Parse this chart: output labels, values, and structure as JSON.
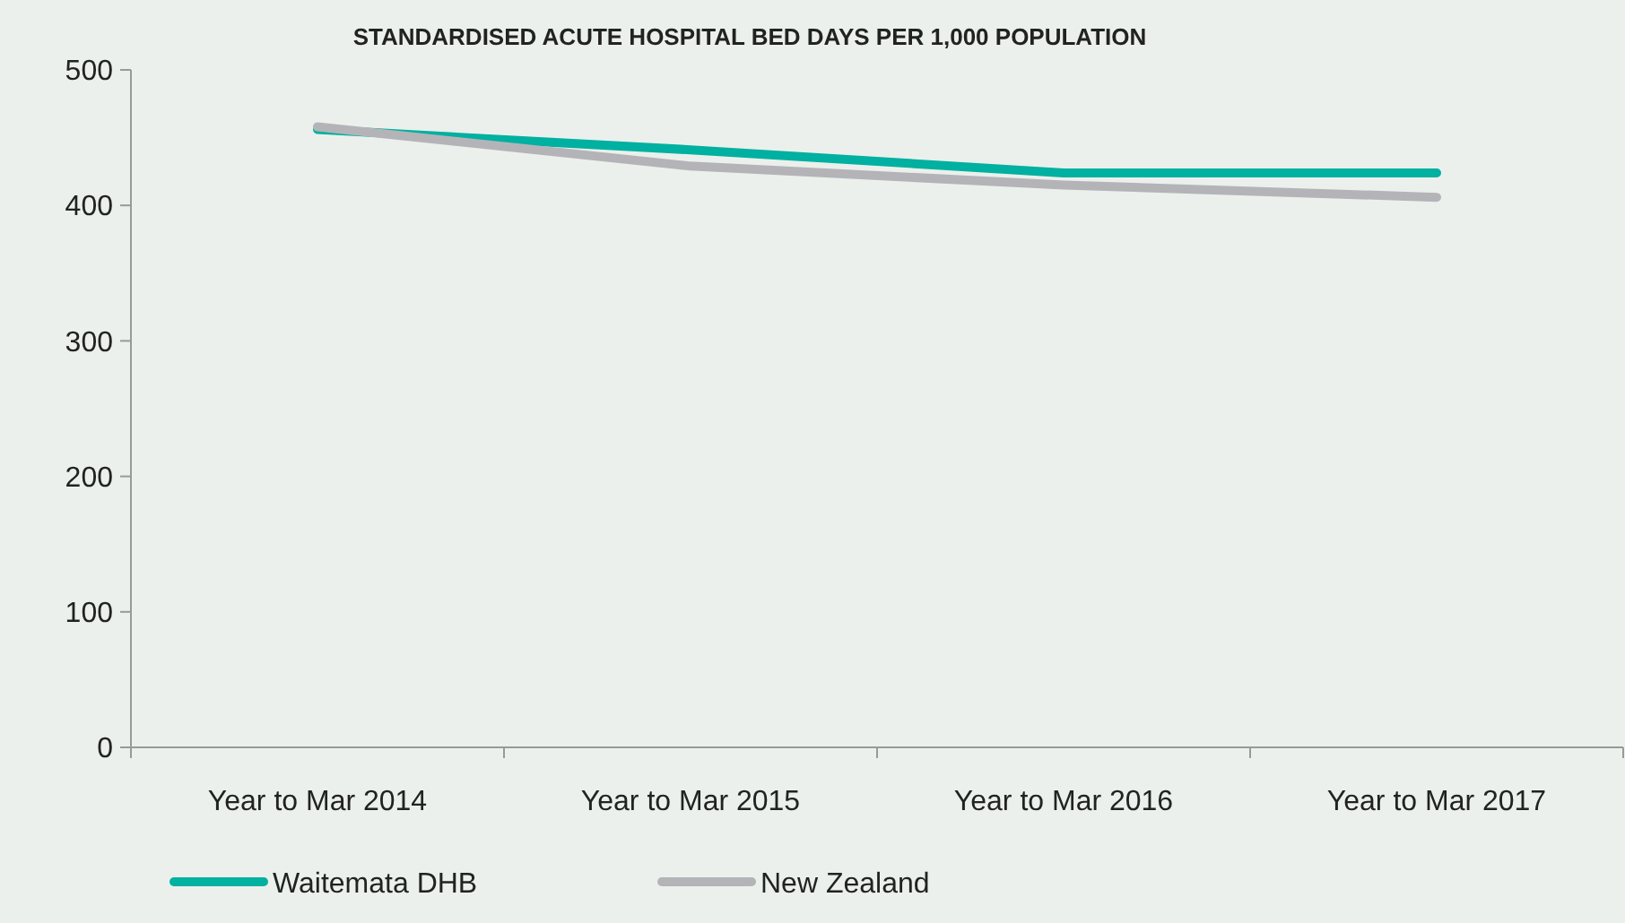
{
  "chart_data": {
    "type": "line",
    "title": "STANDARDISED ACUTE HOSPITAL BED DAYS PER 1,000 POPULATION",
    "categories": [
      "Year to Mar 2014",
      "Year to Mar 2015",
      "Year to Mar 2016",
      "Year to Mar 2017"
    ],
    "series": [
      {
        "name": "Waitemata DHB",
        "color": "#00b0a0",
        "values": [
          456,
          441,
          424,
          424
        ]
      },
      {
        "name": "New Zealand",
        "color": "#b4b4b8",
        "values": [
          458,
          429,
          415,
          406
        ]
      }
    ],
    "ylim": [
      0,
      500
    ],
    "yticks": [
      0,
      100,
      200,
      300,
      400,
      500
    ],
    "grid": false,
    "legend": "bottom left",
    "line_style": "solid"
  }
}
